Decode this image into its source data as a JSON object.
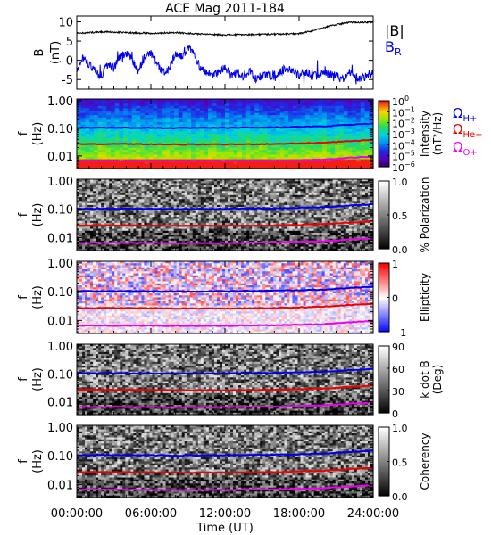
{
  "chart_data": {
    "type": "spectrogram",
    "title": "ACE Mag 2011-184",
    "x": {
      "label": "Time (UT)",
      "ticks": [
        "00:00:00",
        "06:00:00",
        "12:00:00",
        "18:00:00",
        "24:00:00"
      ],
      "tick_hours": [
        0,
        6,
        12,
        18,
        24
      ],
      "range_hours": [
        0,
        24
      ]
    },
    "top_panel": {
      "ylabel_line1": "B",
      "ylabel_line2": "(nT)",
      "yticks": [
        10,
        5,
        0,
        -5
      ],
      "ylim": [
        -7.5,
        11.5
      ],
      "legend": [
        {
          "text": "|B|",
          "color": "#000000"
        },
        {
          "text": "B",
          "sub": "R",
          "color": "#0000ee"
        }
      ],
      "B_magnitude": {
        "hours": [
          0,
          2,
          4,
          6,
          8,
          10,
          12,
          14,
          16,
          18,
          19,
          20,
          21,
          22,
          24
        ],
        "values": [
          7.0,
          7.4,
          7.2,
          7.0,
          7.2,
          6.8,
          6.6,
          6.7,
          6.8,
          6.9,
          7.6,
          8.5,
          9.3,
          9.8,
          9.9
        ]
      },
      "B_R": {
        "hours": [
          0,
          0.5,
          1,
          1.5,
          2,
          2.5,
          3,
          3.5,
          4,
          4.5,
          5,
          5.5,
          6,
          6.5,
          7,
          7.5,
          8,
          8.5,
          9,
          9.5,
          10,
          10.5,
          11,
          11.5,
          12,
          12.5,
          13,
          13.5,
          14,
          14.5,
          15,
          15.5,
          16,
          16.5,
          17,
          17.5,
          18,
          18.5,
          19,
          19.5,
          20,
          20.5,
          21,
          21.5,
          22,
          22.5,
          23,
          23.5,
          24
        ],
        "values": [
          -3,
          1,
          -1,
          -3,
          -4,
          -1,
          -2,
          1,
          2,
          0,
          -3,
          1,
          2,
          -1,
          -3,
          -2,
          2,
          1,
          3,
          2,
          -2,
          -3,
          -4,
          -3,
          -2,
          -4,
          -3,
          -4,
          -3,
          -5,
          -4,
          -4,
          -4,
          -3,
          -2,
          -3,
          -4,
          -3,
          -4,
          -4,
          -3,
          -4,
          -4,
          -5,
          -3,
          -4,
          -5,
          -4,
          -3
        ]
      }
    },
    "panels": [
      {
        "name": "intensity",
        "ylabel_line1": "f",
        "ylabel_line2": "(Hz)",
        "yticks": [
          "1.00",
          "0.10",
          "0.01"
        ],
        "colorbar": {
          "scale": "rainbow",
          "tick_values": [
            0,
            -1,
            -2,
            -3,
            -4,
            -5,
            -6
          ],
          "tick_labels": [
            "10",
            "10",
            "10",
            "10",
            "10",
            "10",
            "10"
          ],
          "tick_exps": [
            "0",
            "−1",
            "−2",
            "−3",
            "−4",
            "−5",
            "−6"
          ],
          "label_line1": "Intensity",
          "label_line2": "(nT²/Hz)"
        }
      },
      {
        "name": "polarization",
        "ylabel_line1": "f",
        "ylabel_line2": "(Hz)",
        "yticks": [
          "1.00",
          "0.10",
          "0.01"
        ],
        "colorbar": {
          "scale": "gray",
          "tick_values": [
            1.0,
            0.5,
            0.0
          ],
          "tick_labels": [
            "1.0",
            "0.5",
            "0.0"
          ],
          "label_line1": "% Polarization"
        }
      },
      {
        "name": "ellipticity",
        "ylabel_line1": "f",
        "ylabel_line2": "(Hz)",
        "yticks": [
          "1.00",
          "0.10",
          "0.01"
        ],
        "colorbar": {
          "scale": "bwr",
          "tick_values": [
            1,
            0,
            -1
          ],
          "tick_labels": [
            "1",
            "0",
            "−1"
          ],
          "label_line1": "Ellipticity"
        }
      },
      {
        "name": "kdotb",
        "ylabel_line1": "f",
        "ylabel_line2": "(Hz)",
        "yticks": [
          "1.00",
          "0.10",
          "0.01"
        ],
        "colorbar": {
          "scale": "gray",
          "tick_values": [
            90,
            60,
            30,
            0
          ],
          "tick_labels": [
            "90",
            "60",
            "30",
            "0"
          ],
          "label_line1": "k dot B",
          "label_line2": "(Deg)"
        }
      },
      {
        "name": "coherency",
        "ylabel_line1": "f",
        "ylabel_line2": "(Hz)",
        "yticks": [
          "1.00",
          "0.10",
          "0.01"
        ],
        "colorbar": {
          "scale": "gray",
          "tick_values": [
            1.0,
            0.5,
            0.0
          ],
          "tick_labels": [
            "1.0",
            "0.5",
            "0.0"
          ],
          "label_line1": "Coherency"
        }
      }
    ],
    "freq_range_hz": [
      0.0035,
      1.15
    ],
    "gyrofrequencies": [
      {
        "label": "Ω",
        "sub": "H+",
        "color": "#0000ee",
        "hours": [
          0,
          4,
          8,
          12,
          16,
          20,
          22,
          24
        ],
        "hz": [
          0.105,
          0.105,
          0.102,
          0.104,
          0.108,
          0.118,
          0.135,
          0.15
        ]
      },
      {
        "label": "Ω",
        "sub": "He+",
        "color": "#ee0000",
        "hours": [
          0,
          4,
          8,
          12,
          16,
          20,
          22,
          24
        ],
        "hz": [
          0.027,
          0.027,
          0.026,
          0.026,
          0.027,
          0.03,
          0.034,
          0.038
        ]
      },
      {
        "label": "Ω",
        "sub": "O+",
        "color": "#ee00ee",
        "hours": [
          0,
          4,
          8,
          12,
          16,
          20,
          22,
          24
        ],
        "hz": [
          0.0066,
          0.0066,
          0.0064,
          0.0065,
          0.0068,
          0.0074,
          0.0085,
          0.0095
        ]
      }
    ]
  }
}
